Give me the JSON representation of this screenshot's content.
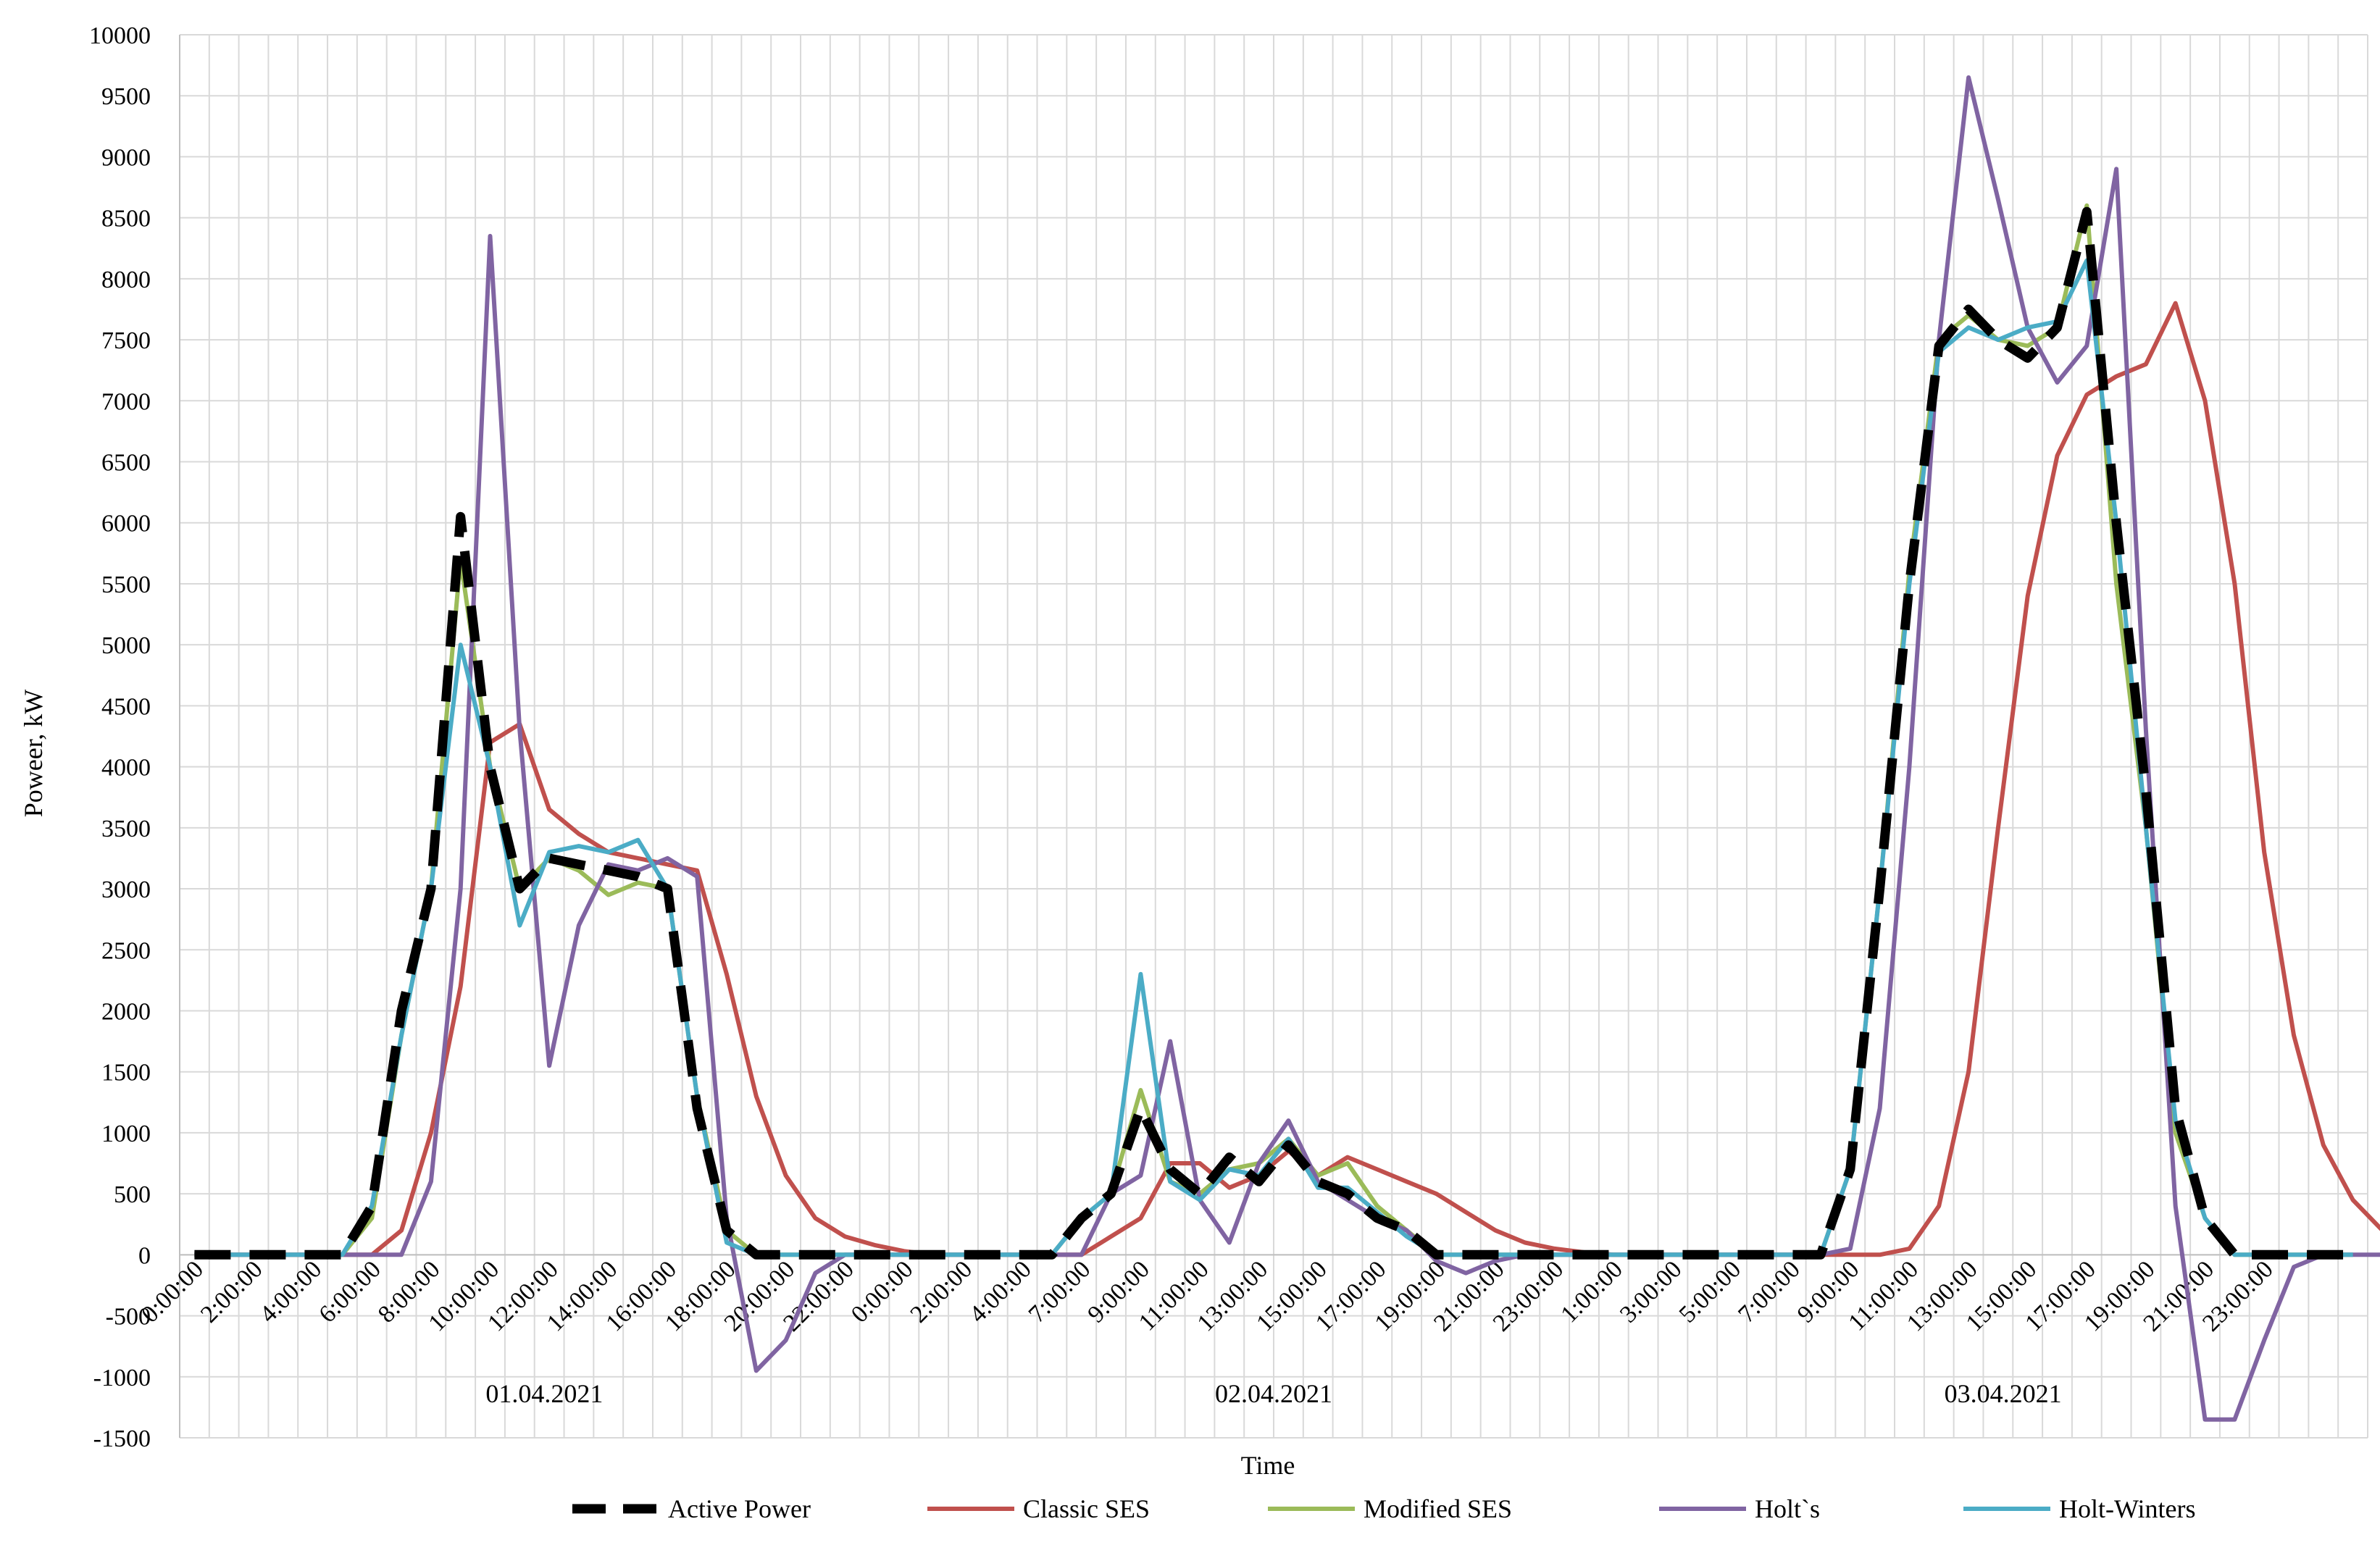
{
  "chart_data": {
    "type": "line",
    "title": "",
    "xlabel": "Time",
    "ylabel": "Poweer, kW",
    "ylim": [
      -1500,
      10000
    ],
    "y_ticks": [
      -1500,
      -1000,
      -500,
      0,
      500,
      1000,
      1500,
      2000,
      2500,
      3000,
      3500,
      4000,
      4500,
      5000,
      5500,
      6000,
      6500,
      7000,
      7500,
      8000,
      8500,
      9000,
      9500,
      10000
    ],
    "grid": "on",
    "legend_position": "bottom",
    "x_tick_labels": [
      "0:00:00",
      "2:00:00",
      "4:00:00",
      "6:00:00",
      "8:00:00",
      "10:00:00",
      "12:00:00",
      "14:00:00",
      "16:00:00",
      "18:00:00",
      "20:00:00",
      "22:00:00",
      "0:00:00",
      "2:00:00",
      "4:00:00",
      "7:00:00",
      "9:00:00",
      "11:00:00",
      "13:00:00",
      "15:00:00",
      "17:00:00",
      "19:00:00",
      "21:00:00",
      "23:00:00",
      "1:00:00",
      "3:00:00",
      "5:00:00",
      "7:00:00",
      "9:00:00",
      "11:00:00",
      "13:00:00",
      "15:00:00",
      "17:00:00",
      "19:00:00",
      "21:00:00",
      "23:00:00"
    ],
    "date_labels": [
      "01.04.2021",
      "02.04.2021",
      "03.04.2021"
    ],
    "series": [
      {
        "name": "Active Power",
        "color": "#000000",
        "style": "dashed",
        "values": [
          0,
          0,
          0,
          0,
          0,
          0,
          400,
          2000,
          3000,
          6050,
          4000,
          3000,
          3250,
          3200,
          3150,
          3100,
          3000,
          1200,
          200,
          0,
          0,
          0,
          0,
          0,
          0,
          0,
          0,
          0,
          0,
          0,
          300,
          500,
          1200,
          700,
          500,
          800,
          600,
          900,
          600,
          500,
          300,
          200,
          0,
          0,
          0,
          0,
          0,
          0,
          0,
          0,
          0,
          0,
          0,
          0,
          0,
          0,
          700,
          3000,
          5500,
          7450,
          7750,
          7500,
          7350,
          7600,
          8550,
          6000,
          3800,
          1200,
          300,
          0,
          0,
          0,
          0,
          0
        ]
      },
      {
        "name": "Classic SES",
        "color": "#c0504d",
        "style": "solid",
        "values": [
          0,
          0,
          0,
          0,
          0,
          0,
          0,
          200,
          1000,
          2200,
          4200,
          4350,
          3650,
          3450,
          3300,
          3250,
          3200,
          3150,
          2300,
          1300,
          650,
          300,
          150,
          80,
          30,
          0,
          0,
          0,
          0,
          0,
          0,
          150,
          300,
          750,
          750,
          550,
          650,
          850,
          650,
          800,
          700,
          600,
          500,
          350,
          200,
          100,
          50,
          20,
          0,
          0,
          0,
          0,
          0,
          0,
          0,
          0,
          0,
          0,
          50,
          400,
          1500,
          3500,
          5400,
          6550,
          7050,
          7200,
          7300,
          7800,
          7000,
          5500,
          3300,
          1800,
          900,
          450,
          200,
          100
        ]
      },
      {
        "name": "Modified SES",
        "color": "#9bbb59",
        "style": "solid",
        "values": [
          0,
          0,
          0,
          0,
          0,
          0,
          300,
          1800,
          3000,
          5700,
          4000,
          3000,
          3250,
          3150,
          2950,
          3050,
          3000,
          1300,
          200,
          0,
          0,
          0,
          0,
          0,
          0,
          0,
          0,
          0,
          0,
          0,
          300,
          500,
          1350,
          600,
          500,
          700,
          750,
          950,
          650,
          750,
          400,
          200,
          0,
          0,
          0,
          0,
          0,
          0,
          0,
          0,
          0,
          0,
          0,
          0,
          0,
          0,
          700,
          3000,
          5600,
          7500,
          7700,
          7500,
          7450,
          7600,
          8600,
          5500,
          3500,
          1000,
          300,
          0,
          0,
          0,
          0,
          0
        ]
      },
      {
        "name": "Holt`s",
        "color": "#8064a2",
        "style": "solid",
        "values": [
          0,
          0,
          0,
          0,
          0,
          0,
          0,
          0,
          600,
          3000,
          8350,
          4300,
          1550,
          2700,
          3200,
          3150,
          3250,
          3100,
          300,
          -950,
          -700,
          -150,
          0,
          0,
          0,
          0,
          0,
          0,
          0,
          0,
          0,
          500,
          650,
          1750,
          450,
          100,
          750,
          1100,
          600,
          450,
          300,
          200,
          -50,
          -150,
          -50,
          0,
          0,
          0,
          0,
          0,
          0,
          0,
          0,
          0,
          0,
          0,
          50,
          1200,
          4000,
          7500,
          9650,
          8650,
          7600,
          7150,
          7450,
          8900,
          4300,
          400,
          -1350,
          -1350,
          -700,
          -100,
          0,
          0,
          0
        ]
      },
      {
        "name": "Holt-Winters",
        "color": "#4bacc6",
        "style": "solid",
        "values": [
          0,
          0,
          0,
          0,
          0,
          0,
          400,
          1800,
          3000,
          5000,
          4000,
          2700,
          3300,
          3350,
          3300,
          3400,
          3000,
          1300,
          100,
          0,
          0,
          0,
          0,
          0,
          0,
          0,
          0,
          0,
          0,
          0,
          300,
          500,
          2300,
          600,
          450,
          700,
          650,
          950,
          550,
          550,
          350,
          150,
          0,
          0,
          0,
          0,
          0,
          0,
          0,
          0,
          0,
          0,
          0,
          0,
          0,
          0,
          700,
          3000,
          5500,
          7400,
          7600,
          7500,
          7600,
          7650,
          8150,
          6000,
          3500,
          1100,
          300,
          0,
          0,
          0,
          0,
          0
        ]
      }
    ]
  }
}
